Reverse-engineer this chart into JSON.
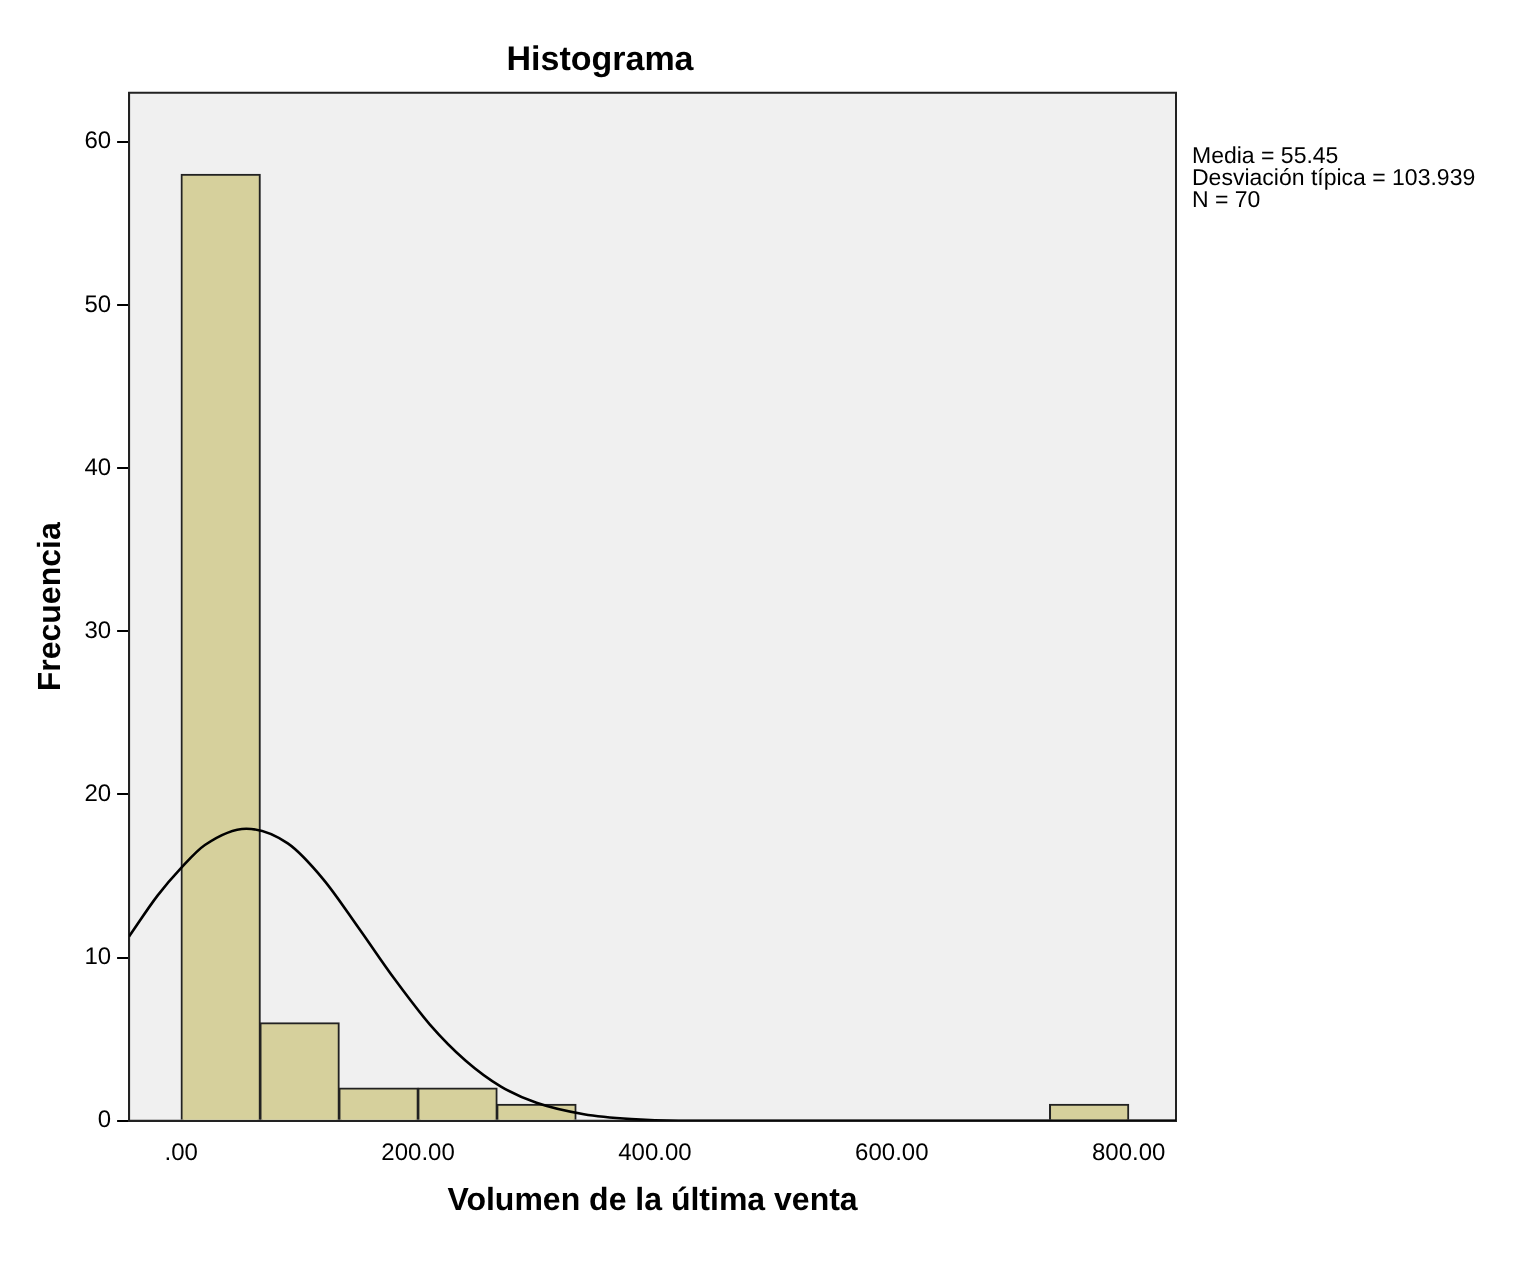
{
  "chart_data": {
    "type": "histogram",
    "title": "Histograma",
    "xlabel": "Volumen de la última venta",
    "ylabel": "Frecuencia",
    "bins": [
      0,
      66.67,
      133.33,
      200,
      266.67,
      333.33,
      400,
      466.67,
      533.33,
      600,
      666.67,
      733.33,
      800
    ],
    "values": [
      58,
      6,
      2,
      2,
      1,
      0,
      0,
      0,
      0,
      0,
      0,
      1
    ],
    "color": "#d6d09c",
    "series": [
      {
        "type": "line",
        "color": "#000000",
        "x": [
          -44,
          -20,
          0,
          20,
          55,
          90,
          120,
          150,
          180,
          210,
          240,
          270,
          300,
          340,
          380,
          420,
          500,
          840
        ],
        "values": [
          11.3,
          13.8,
          15.5,
          16.9,
          17.9,
          17.0,
          14.8,
          11.8,
          8.7,
          5.9,
          3.7,
          2.1,
          1.1,
          0.4,
          0.1,
          0,
          0,
          0
        ]
      }
    ],
    "xlim": [
      -44,
      840
    ],
    "ylim": [
      0,
      63
    ],
    "xticks": [
      {
        "value": 0,
        "label": ".00"
      },
      {
        "value": 200,
        "label": "200.00"
      },
      {
        "value": 400,
        "label": "400.00"
      },
      {
        "value": 600,
        "label": "600.00"
      },
      {
        "value": 800,
        "label": "800.00"
      }
    ],
    "yticks": [
      0,
      10,
      20,
      30,
      40,
      50,
      60
    ],
    "grid": false,
    "legend": false,
    "annotations": [
      "Media = 55.45",
      "Desviación típica = 103.939",
      "N = 70"
    ]
  }
}
